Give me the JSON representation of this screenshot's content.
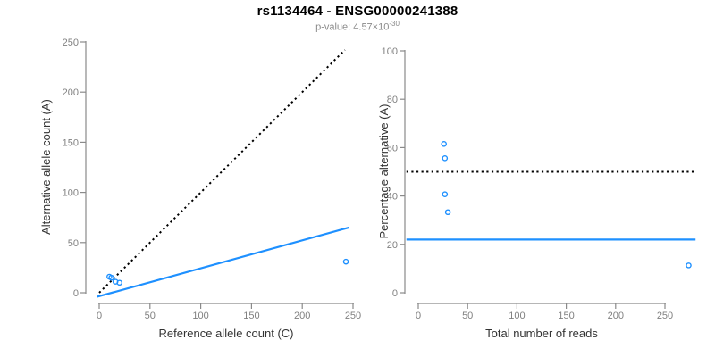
{
  "header": {
    "title": "rs1134464 - ENSG00000241388",
    "subtitle_prefix": "p-value: 4.57×10",
    "subtitle_exponent": "-30"
  },
  "colors": {
    "accent": "#1E90FF",
    "axis_line": "#8a8a8a",
    "tick_label": "#808080",
    "axis_title": "#333333",
    "dotted_line": "#000000"
  },
  "chart_data": [
    {
      "name": "allele-count-scatter",
      "type": "scatter",
      "xlabel": "Reference allele count (C)",
      "ylabel": "Alternative allele count (A)",
      "xlim": [
        0,
        250
      ],
      "ylim": [
        0,
        250
      ],
      "xticks": [
        0,
        50,
        100,
        150,
        200,
        250
      ],
      "yticks": [
        0,
        50,
        100,
        150,
        200,
        250
      ],
      "grid": false,
      "point_color": "#1E90FF",
      "points": [
        [
          10,
          16
        ],
        [
          12,
          15
        ],
        [
          16,
          11
        ],
        [
          20,
          10
        ],
        [
          243,
          31
        ]
      ],
      "lines": [
        {
          "name": "identity-line",
          "style": "dotted",
          "color": "#000000",
          "points": [
            [
              0,
              0
            ],
            [
              242,
              242
            ]
          ]
        },
        {
          "name": "fit-line",
          "style": "solid",
          "color": "#1E90FF",
          "points": [
            [
              -2,
              -4
            ],
            [
              246,
              65
            ]
          ]
        }
      ]
    },
    {
      "name": "percentage-scatter",
      "type": "scatter",
      "xlabel": "Total number of reads",
      "ylabel": "Percentage alternative (A)",
      "xlim": [
        0,
        250
      ],
      "ylim": [
        0,
        100
      ],
      "xticks": [
        0,
        50,
        100,
        150,
        200,
        250
      ],
      "yticks": [
        0,
        20,
        40,
        60,
        80,
        100
      ],
      "grid": false,
      "point_color": "#1E90FF",
      "points": [
        [
          26,
          61.5
        ],
        [
          27,
          55.6
        ],
        [
          27,
          40.7
        ],
        [
          30,
          33.3
        ],
        [
          274,
          11.3
        ]
      ],
      "lines": [
        {
          "name": "expected-percentage-line",
          "style": "dotted",
          "color": "#000000",
          "points": [
            [
              -12,
              50
            ],
            [
              281,
              50
            ]
          ]
        },
        {
          "name": "fit-line",
          "style": "solid",
          "color": "#1E90FF",
          "points": [
            [
              -12,
              22
            ],
            [
              281,
              22
            ]
          ]
        }
      ]
    }
  ]
}
